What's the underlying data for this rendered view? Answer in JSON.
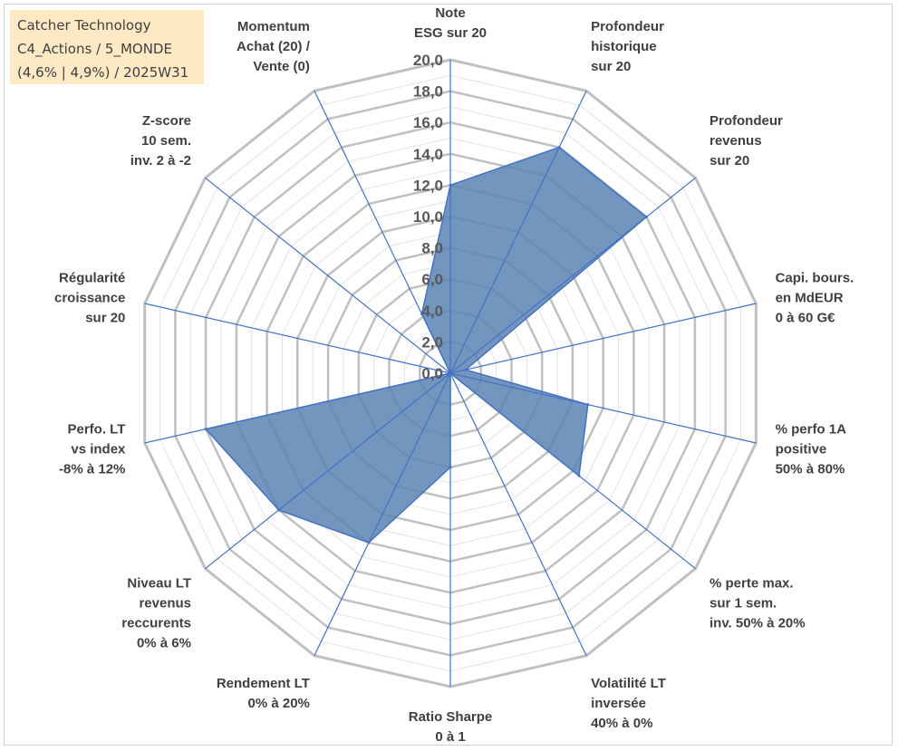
{
  "title_box": {
    "line1": "Catcher Technology",
    "line2": "C4_Actions / 5_MONDE",
    "line3": "(4,6% | 4,9%) / 2025W31"
  },
  "chart_data": {
    "type": "radar",
    "axes": [
      [
        "Note",
        "ESG sur 20"
      ],
      [
        "Profondeur",
        "historique",
        "sur 20"
      ],
      [
        "Profondeur",
        "revenus",
        "sur 20"
      ],
      [
        "Capi. bours.",
        "en MdEUR",
        "0 à 60 G€"
      ],
      [
        "% perfo 1A",
        "positive",
        "50% à 80%"
      ],
      [
        "% perte max.",
        "sur 1 sem.",
        "inv. 50% à 20%"
      ],
      [
        "Volatilité LT",
        "inversée",
        "40% à 0%"
      ],
      [
        "Ratio Sharpe",
        "0 à 1"
      ],
      [
        "Rendement LT",
        "0% à 20%"
      ],
      [
        "Niveau LT",
        "revenus",
        "reccurents",
        "0% à 6%"
      ],
      [
        "Perfo. LT",
        "vs index",
        "-8% à 12%"
      ],
      [
        "Régularité",
        "croissance",
        "sur 20"
      ],
      [
        "Z-score",
        "10 sem.",
        "inv. 2 à -2"
      ],
      [
        "Momentum",
        "Achat (20) /",
        "Vente (0)"
      ]
    ],
    "values": [
      12.0,
      16.0,
      16.0,
      1.0,
      9.0,
      10.5,
      0.0,
      6.0,
      12.0,
      14.0,
      16.0,
      0.0,
      0.0,
      4.2
    ],
    "rmin": 0,
    "rmax": 20,
    "tick_step": 2,
    "tick_labels": [
      "0,0",
      "2,0",
      "4,0",
      "6,0",
      "8,0",
      "10,0",
      "12,0",
      "14,0",
      "16,0",
      "18,0",
      "20,0"
    ],
    "colors": {
      "fill": "#5b84b4",
      "stroke": "#4472c4",
      "spoke": "#4472c4",
      "ring_major": "#c0c0c0",
      "ring_minor": "#e3e3e3"
    }
  }
}
